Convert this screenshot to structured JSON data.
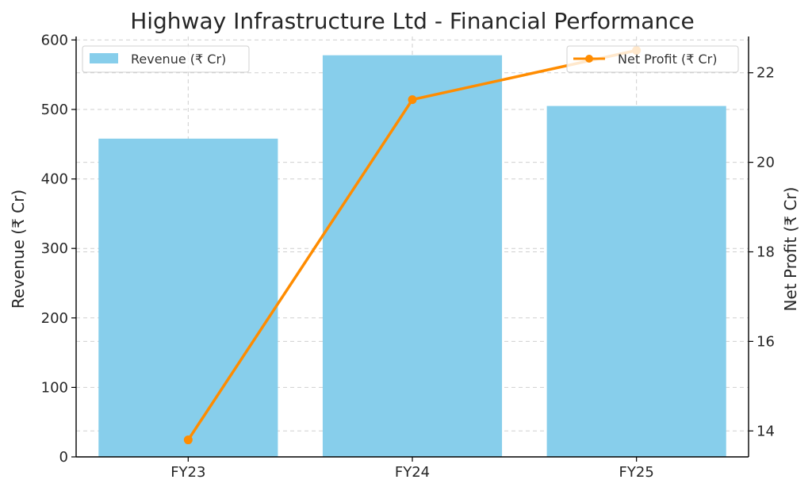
{
  "chart_data": {
    "type": "bar",
    "title": "Highway Infrastructure Ltd - Financial Performance",
    "categories": [
      "FY23",
      "FY24",
      "FY25"
    ],
    "series": [
      {
        "name": "Revenue (₹ Cr)",
        "type": "bar",
        "axis": "left",
        "color": "#87CEEB",
        "values": [
          458,
          578,
          505
        ]
      },
      {
        "name": "Net Profit (₹ Cr)",
        "type": "line",
        "axis": "right",
        "color": "#FF8C00",
        "values": [
          13.8,
          21.4,
          22.5
        ]
      }
    ],
    "ylabel": "Revenue (₹ Cr)",
    "ylim": [
      0,
      605
    ],
    "yticks": [
      0,
      100,
      200,
      300,
      400,
      500,
      600
    ],
    "y2label": "Net Profit (₹ Cr)",
    "y2lim": [
      13.42,
      22.81
    ],
    "y2ticks": [
      14,
      16,
      18,
      20,
      22
    ],
    "grid": true,
    "legends": [
      {
        "series": "Revenue (₹ Cr)",
        "placement": "top-left"
      },
      {
        "series": "Net Profit (₹ Cr)",
        "placement": "top-right"
      }
    ]
  }
}
